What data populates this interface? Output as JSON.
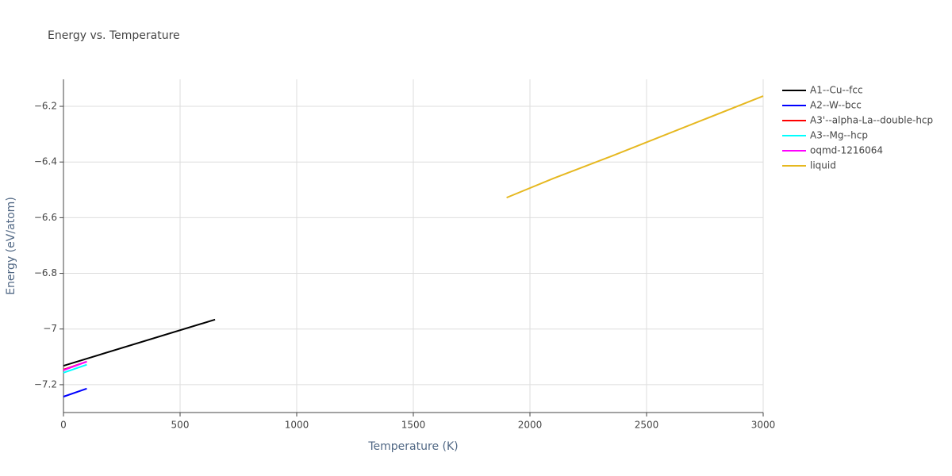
{
  "chart_data": {
    "type": "line",
    "title": "Energy vs. Temperature",
    "x_label": "Temperature (K)",
    "y_label": "Energy (eV/atom)",
    "xlim": [
      0,
      3000
    ],
    "xticks": [
      0,
      500,
      1000,
      1500,
      2000,
      2500,
      3000
    ],
    "ylim": [
      -7.3,
      -6.103
    ],
    "yticks": [
      {
        "value": -7.2,
        "label": "−7.2"
      },
      {
        "value": -7,
        "label": "−7"
      },
      {
        "value": -6.8,
        "label": "−6.8"
      },
      {
        "value": -6.6,
        "label": "−6.6"
      },
      {
        "value": -6.4,
        "label": "−6.4"
      },
      {
        "value": -6.2,
        "label": "−6.2"
      }
    ],
    "grid": true,
    "legend": "right",
    "series": [
      {
        "name": "A1--Cu--fcc",
        "color": "#000000",
        "x": [
          0,
          650
        ],
        "values": [
          -7.132,
          -6.966
        ]
      },
      {
        "name": "A2--W--bcc",
        "color": "#0000ff",
        "x": [
          0,
          100
        ],
        "values": [
          -7.243,
          -7.214
        ]
      },
      {
        "name": "A3'--alpha-La--double-hcp",
        "color": "#ff0000",
        "x": [
          0,
          100
        ],
        "values": [
          -7.146,
          -7.117
        ]
      },
      {
        "name": "A3--Mg--hcp",
        "color": "#00ffff",
        "x": [
          0,
          100
        ],
        "values": [
          -7.157,
          -7.128
        ]
      },
      {
        "name": "oqmd-1216064",
        "color": "#ff00ff",
        "x": [
          0,
          100
        ],
        "values": [
          -7.148,
          -7.117
        ]
      },
      {
        "name": "liquid",
        "color": "#e6b820",
        "x": [
          1900,
          2100,
          2350,
          3000
        ],
        "values": [
          -6.528,
          -6.459,
          -6.379,
          -6.163
        ]
      }
    ]
  }
}
